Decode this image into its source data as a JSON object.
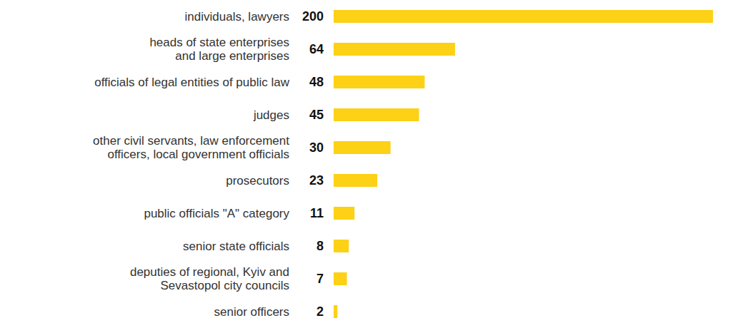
{
  "chart_data": {
    "type": "bar",
    "orientation": "horizontal",
    "categories": [
      "individuals, lawyers",
      "heads of state enterprises and large enterprises",
      "officials of legal entities of public law",
      "judges",
      "other civil servants, law enforcement officers, local government officials",
      "prosecutors",
      "public officials \"A\" category",
      "senior state officials",
      "deputies of regional, Kyiv and Sevastopol city councils",
      "senior officers"
    ],
    "values": [
      200,
      64,
      48,
      45,
      30,
      23,
      11,
      8,
      7,
      2
    ],
    "color": "#fcd116",
    "xlim": [
      0,
      200
    ],
    "tick_labels": false,
    "grid": false,
    "data_labels": true
  }
}
